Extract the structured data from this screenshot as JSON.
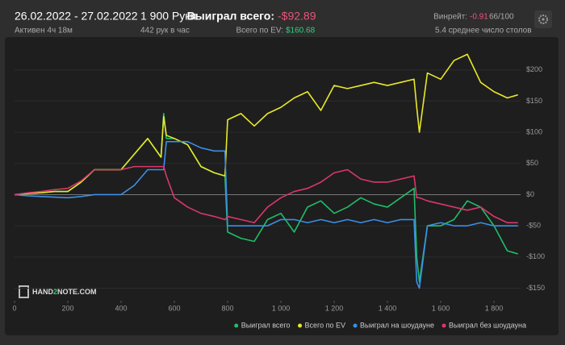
{
  "header": {
    "date_range": "26.02.2022 - 27.02.2022",
    "active": "Активен 4ч 18м",
    "hands": "1 900 Руки",
    "hands_per_hour": "442 рук в час",
    "won_label": "Выиграл всего:",
    "won_value": "-$92.89",
    "ev_label": "Всего по EV:",
    "ev_value": "$160.68",
    "winrate_label": "Винрейт:",
    "winrate_value": "-0.91",
    "winrate_unit": "66/100",
    "tables": "5.4 среднее число столов"
  },
  "logo": {
    "part1": "HAND",
    "part2": "2",
    "part3": "NOTE.COM"
  },
  "chart_data": {
    "type": "line",
    "x": [
      0,
      50,
      100,
      150,
      200,
      250,
      300,
      350,
      400,
      450,
      500,
      550,
      560,
      570,
      600,
      650,
      700,
      750,
      790,
      800,
      850,
      900,
      950,
      1000,
      1050,
      1100,
      1150,
      1200,
      1250,
      1300,
      1350,
      1400,
      1450,
      1500,
      1510,
      1520,
      1550,
      1600,
      1650,
      1700,
      1750,
      1800,
      1850,
      1890
    ],
    "xlim": [
      0,
      1900
    ],
    "xticks": [
      0,
      200,
      400,
      600,
      800,
      {
        "value": 1000,
        "label": "1 000"
      },
      {
        "value": 1200,
        "label": "1 200"
      },
      {
        "value": 1400,
        "label": "1 400"
      },
      {
        "value": 1600,
        "label": "1 600"
      },
      {
        "value": 1800,
        "label": "1 800"
      }
    ],
    "ylim": [
      -170,
      250
    ],
    "yticks": [
      {
        "value": -150,
        "label": "-$150"
      },
      {
        "value": -100,
        "label": "-$100"
      },
      {
        "value": -50,
        "label": "-$50"
      },
      {
        "value": 0,
        "label": "$0"
      },
      {
        "value": 50,
        "label": "$50"
      },
      {
        "value": 100,
        "label": "$100"
      },
      {
        "value": 150,
        "label": "$150"
      },
      {
        "value": 200,
        "label": "$200"
      }
    ],
    "series": [
      {
        "name": "Выиграл всего",
        "color": "#1fbf6a",
        "values": [
          0,
          2,
          3,
          5,
          5,
          20,
          40,
          40,
          40,
          65,
          90,
          60,
          130,
          90,
          90,
          80,
          45,
          35,
          30,
          -60,
          -70,
          -75,
          -40,
          -30,
          -60,
          -20,
          -10,
          -30,
          -20,
          -5,
          -15,
          -20,
          -5,
          10,
          -100,
          -140,
          -50,
          -50,
          -40,
          -10,
          -20,
          -50,
          -90,
          -95
        ]
      },
      {
        "name": "Всего по EV",
        "color": "#e8e82a",
        "values": [
          0,
          2,
          3,
          5,
          5,
          20,
          40,
          40,
          40,
          65,
          90,
          60,
          125,
          95,
          90,
          80,
          45,
          35,
          30,
          120,
          130,
          110,
          130,
          140,
          155,
          165,
          135,
          175,
          170,
          175,
          180,
          175,
          180,
          185,
          140,
          100,
          195,
          185,
          215,
          225,
          180,
          165,
          155,
          160
        ]
      },
      {
        "name": "Выиграл на шоудауне",
        "color": "#3b8fe8",
        "values": [
          0,
          -2,
          -3,
          -4,
          -5,
          -3,
          0,
          0,
          0,
          15,
          40,
          40,
          40,
          85,
          85,
          85,
          75,
          70,
          70,
          -50,
          -50,
          -50,
          -50,
          -40,
          -40,
          -45,
          -40,
          -45,
          -40,
          -45,
          -40,
          -45,
          -40,
          -40,
          -140,
          -150,
          -50,
          -45,
          -50,
          -50,
          -45,
          -50,
          -50,
          -50
        ]
      },
      {
        "name": "Выиграл без шоудауна",
        "color": "#d9386a",
        "values": [
          0,
          3,
          5,
          8,
          10,
          22,
          40,
          40,
          40,
          45,
          45,
          45,
          45,
          30,
          -5,
          -20,
          -30,
          -35,
          -40,
          -35,
          -40,
          -45,
          -20,
          -5,
          5,
          10,
          20,
          35,
          40,
          25,
          20,
          20,
          25,
          30,
          -5,
          -5,
          -10,
          -15,
          -20,
          -25,
          -20,
          -35,
          -45,
          -45
        ]
      }
    ],
    "grid": true
  }
}
